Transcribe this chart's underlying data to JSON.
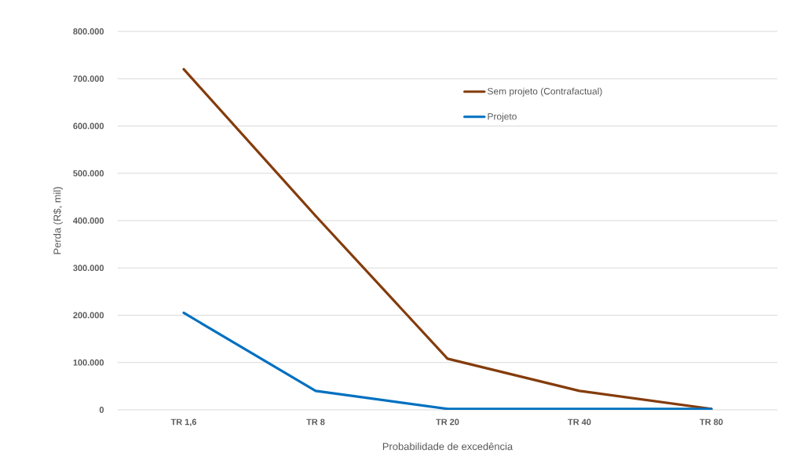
{
  "chart_data": {
    "type": "line",
    "xlabel": "Probabilidade de excedência",
    "ylabel": "Perda (R$, mil)",
    "categories": [
      "TR 1,6",
      "TR 8",
      "TR 20",
      "TR 40",
      "TR 80"
    ],
    "series": [
      {
        "name": "Sem projeto (Contrafactual)",
        "color": "#843c0c",
        "values": [
          720000,
          410000,
          108000,
          40000,
          2000
        ]
      },
      {
        "name": "Projeto",
        "color": "#0070c0",
        "values": [
          205000,
          40000,
          2000,
          2000,
          2000
        ]
      }
    ],
    "ylim": [
      0,
      800000
    ],
    "yticks": [
      {
        "value": 0,
        "label": "0"
      },
      {
        "value": 100000,
        "label": "100.000"
      },
      {
        "value": 200000,
        "label": "200.000"
      },
      {
        "value": 300000,
        "label": "300.000"
      },
      {
        "value": 400000,
        "label": "400.000"
      },
      {
        "value": 500000,
        "label": "500.000"
      },
      {
        "value": 600000,
        "label": "600.000"
      },
      {
        "value": 700000,
        "label": "700.000"
      },
      {
        "value": 800000,
        "label": "800.000"
      }
    ],
    "grid": "y",
    "legend": "top right",
    "marker": "none",
    "line_style": "solid"
  }
}
